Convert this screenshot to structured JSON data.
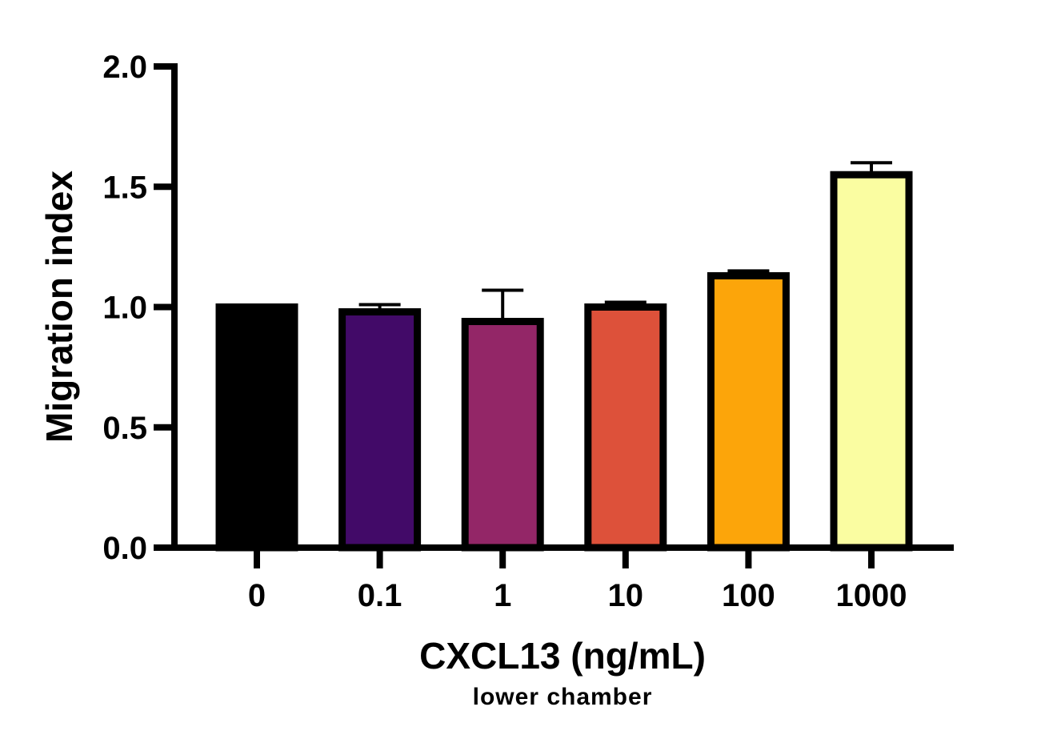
{
  "chart_data": {
    "type": "bar",
    "categories": [
      "0",
      "0.1",
      "1",
      "10",
      "100",
      "1000"
    ],
    "values": [
      1.0,
      0.98,
      0.94,
      1.0,
      1.13,
      1.55
    ],
    "error_upper": [
      1.0,
      1.01,
      1.07,
      1.02,
      1.15,
      1.6
    ],
    "colors": [
      "#000000",
      "#420a68",
      "#932667",
      "#dd513a",
      "#fca50a",
      "#fafda1"
    ],
    "ylim": [
      0,
      2.0
    ],
    "yticks": [
      "0.0",
      "0.5",
      "1.0",
      "1.5",
      "2.0"
    ],
    "ytick_values": [
      0,
      0.5,
      1.0,
      1.5,
      2.0
    ],
    "ylabel": "Migration index",
    "xlabel": "CXCL13 (ng/mL)",
    "xlabel_sub": "lower chamber",
    "grid": false,
    "legend": "none"
  }
}
